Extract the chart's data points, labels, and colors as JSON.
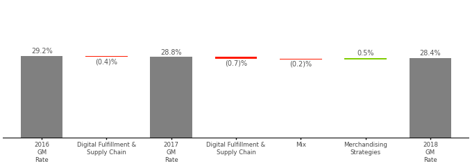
{
  "categories": [
    "2016\nGM\nRate",
    "Digital Fulfillment &\nSupply Chain",
    "2017\nGM\nRate",
    "Digital Fulfillment &\nSupply Chain",
    "Mix",
    "Merchandising\nStrategies",
    "2018\nGM\nRate"
  ],
  "bar_bottoms": [
    0,
    28.8,
    0,
    28.1,
    27.9,
    27.9,
    0
  ],
  "bar_heights": [
    29.2,
    0.4,
    28.8,
    0.7,
    0.2,
    0.5,
    28.4
  ],
  "bar_colors": [
    "#808080",
    "#ff1a00",
    "#808080",
    "#ff1a00",
    "#ff1a00",
    "#7fcc00",
    "#808080"
  ],
  "labels": [
    "29.2%",
    "(0.4)%",
    "28.8%",
    "(0.7)%",
    "(0.2)%",
    "0.5%",
    "28.4%"
  ],
  "label_above": [
    true,
    false,
    true,
    false,
    false,
    true,
    true
  ],
  "ylim": [
    0,
    48.0
  ],
  "baseline": 0,
  "background_color": "#ffffff",
  "bar_width": 0.65,
  "axhline_y": 0,
  "n": 7
}
